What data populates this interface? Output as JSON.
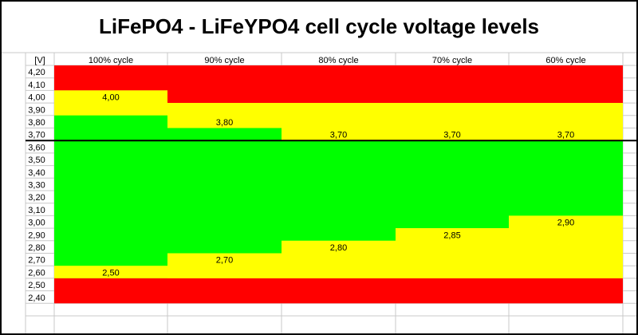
{
  "chart_data": {
    "type": "table",
    "title": "LiFePO4 - LiFeYPO4 cell cycle voltage levels",
    "unit_label": "[V]",
    "voltage_rows": [
      "4,20",
      "4,10",
      "4,00",
      "3,90",
      "3,80",
      "3,70",
      "3,60",
      "3,50",
      "3,40",
      "3,30",
      "3,20",
      "3,10",
      "3,00",
      "2,90",
      "2,80",
      "2,70",
      "2,60",
      "2,50",
      "2,40"
    ],
    "row_values": [
      4.2,
      4.1,
      4.0,
      3.9,
      3.8,
      3.7,
      3.6,
      3.5,
      3.4,
      3.3,
      3.2,
      3.1,
      3.0,
      2.9,
      2.8,
      2.7,
      2.6,
      2.5,
      2.4
    ],
    "cycle_headers": [
      "100% cycle",
      "90% cycle",
      "80% cycle",
      "70% cycle",
      "60% cycle"
    ],
    "series": [
      {
        "name": "100% cycle",
        "upper": 4.0,
        "upper_label": "4,00",
        "lower": 2.5,
        "lower_label": "2,50"
      },
      {
        "name": "90% cycle",
        "upper": 3.8,
        "upper_label": "3,80",
        "lower": 2.7,
        "lower_label": "2,70"
      },
      {
        "name": "80% cycle",
        "upper": 3.7,
        "upper_label": "3,70",
        "lower": 2.8,
        "lower_label": "2,80"
      },
      {
        "name": "70% cycle",
        "upper": 3.7,
        "upper_label": "3,70",
        "lower": 2.85,
        "lower_label": "2,85"
      },
      {
        "name": "60% cycle",
        "upper": 3.7,
        "upper_label": "3,70",
        "lower": 2.9,
        "lower_label": "2,90"
      }
    ],
    "nominal_line": 3.65,
    "colors": {
      "danger": "#ff0000",
      "caution": "#ffff00",
      "safe": "#00ff00",
      "grid": "#c8c8c8",
      "line": "#000000",
      "text": "#000000",
      "background": "#ffffff"
    }
  }
}
